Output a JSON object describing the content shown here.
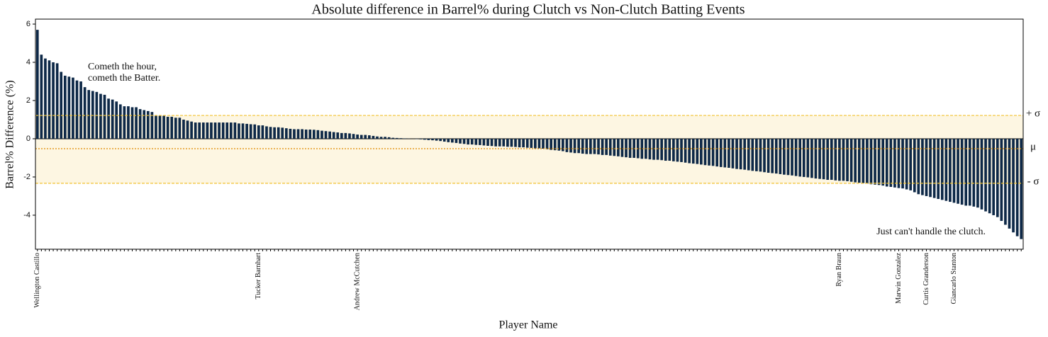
{
  "chart_data": {
    "type": "bar",
    "title": "Absolute difference in Barrel% during Clutch vs Non-Clutch Batting Events",
    "x_label": "Player Name",
    "y_label": "Barrel% Difference (%)",
    "color": "#0d2847",
    "ylim": [
      -5.78,
      6.26
    ],
    "yticks": [
      -4,
      -2,
      0,
      2,
      4,
      6
    ],
    "grid": false,
    "reference_lines": [
      {
        "value": 1.22,
        "label": "+ σ",
        "style": "dashed",
        "color": "#f2c230"
      },
      {
        "value": -0.52,
        "label": "μ",
        "style": "dotted",
        "color": "#e08a00"
      },
      {
        "value": -2.33,
        "label": "- σ",
        "style": "dashed",
        "color": "#f2c230"
      }
    ],
    "band_color": "#fdf6e2",
    "annotations": [
      {
        "text": [
          "Cometh the hour,",
          "cometh the Batter."
        ]
      },
      {
        "text": [
          "Just can't handle the clutch."
        ]
      }
    ],
    "categories": [
      "Wellington Castillo",
      null,
      null,
      null,
      null,
      null,
      null,
      null,
      null,
      null,
      null,
      null,
      null,
      null,
      null,
      null,
      null,
      null,
      null,
      null,
      null,
      null,
      null,
      null,
      null,
      null,
      null,
      null,
      null,
      null,
      null,
      null,
      null,
      null,
      null,
      null,
      null,
      null,
      null,
      null,
      null,
      null,
      null,
      null,
      null,
      null,
      null,
      null,
      null,
      null,
      null,
      null,
      null,
      null,
      null,
      null,
      "Tucker Barnhart",
      null,
      null,
      null,
      null,
      null,
      null,
      null,
      null,
      null,
      null,
      null,
      null,
      null,
      null,
      null,
      null,
      null,
      null,
      null,
      null,
      null,
      null,
      null,
      null,
      "Andrew McCutchen",
      null,
      null,
      null,
      null,
      null,
      null,
      null,
      null,
      null,
      null,
      null,
      null,
      null,
      null,
      null,
      null,
      null,
      null,
      null,
      null,
      null,
      null,
      null,
      null,
      null,
      null,
      null,
      null,
      null,
      null,
      null,
      null,
      null,
      null,
      null,
      null,
      null,
      null,
      null,
      null,
      null,
      null,
      null,
      null,
      null,
      null,
      null,
      null,
      null,
      null,
      null,
      null,
      null,
      null,
      null,
      null,
      null,
      null,
      null,
      null,
      null,
      null,
      null,
      null,
      null,
      null,
      null,
      null,
      null,
      null,
      null,
      null,
      null,
      null,
      null,
      null,
      null,
      null,
      null,
      null,
      null,
      null,
      null,
      null,
      null,
      null,
      null,
      null,
      null,
      null,
      null,
      null,
      null,
      null,
      null,
      null,
      null,
      null,
      null,
      null,
      null,
      null,
      null,
      null,
      null,
      null,
      null,
      null,
      null,
      null,
      null,
      null,
      null,
      null,
      null,
      null,
      null,
      null,
      null,
      null,
      null,
      "Ryan Braun",
      null,
      null,
      null,
      null,
      null,
      null,
      null,
      null,
      null,
      null,
      null,
      null,
      null,
      null,
      "Marwin Gonzalez",
      null,
      null,
      null,
      null,
      null,
      null,
      "Curtis Granderson",
      null,
      null,
      null,
      null,
      null,
      null,
      "Giancarlo Stanton",
      null,
      null,
      null,
      null,
      null,
      null,
      null,
      null,
      null,
      null,
      null,
      null,
      null,
      null,
      null,
      null,
      null
    ],
    "values": [
      5.7,
      4.4,
      4.2,
      4.1,
      4.0,
      3.95,
      3.5,
      3.3,
      3.25,
      3.2,
      3.05,
      3.0,
      2.7,
      2.55,
      2.5,
      2.45,
      2.35,
      2.3,
      2.1,
      2.05,
      1.95,
      1.8,
      1.7,
      1.7,
      1.65,
      1.65,
      1.55,
      1.5,
      1.45,
      1.4,
      1.2,
      1.2,
      1.2,
      1.15,
      1.15,
      1.1,
      1.1,
      1.0,
      0.95,
      0.9,
      0.85,
      0.85,
      0.85,
      0.85,
      0.85,
      0.85,
      0.85,
      0.85,
      0.85,
      0.85,
      0.85,
      0.8,
      0.8,
      0.78,
      0.76,
      0.75,
      0.7,
      0.7,
      0.65,
      0.62,
      0.6,
      0.6,
      0.58,
      0.55,
      0.52,
      0.5,
      0.5,
      0.5,
      0.48,
      0.48,
      0.47,
      0.45,
      0.42,
      0.4,
      0.38,
      0.35,
      0.33,
      0.3,
      0.3,
      0.28,
      0.25,
      0.22,
      0.2,
      0.2,
      0.18,
      0.15,
      0.12,
      0.1,
      0.1,
      0.08,
      0.05,
      0.04,
      0.03,
      0.02,
      0.01,
      0.0,
      -0.02,
      -0.03,
      -0.05,
      -0.07,
      -0.08,
      -0.1,
      -0.12,
      -0.15,
      -0.18,
      -0.2,
      -0.22,
      -0.25,
      -0.27,
      -0.3,
      -0.3,
      -0.32,
      -0.33,
      -0.35,
      -0.37,
      -0.38,
      -0.4,
      -0.4,
      -0.4,
      -0.42,
      -0.42,
      -0.43,
      -0.45,
      -0.45,
      -0.47,
      -0.48,
      -0.5,
      -0.5,
      -0.52,
      -0.55,
      -0.58,
      -0.6,
      -0.62,
      -0.65,
      -0.7,
      -0.72,
      -0.75,
      -0.75,
      -0.78,
      -0.8,
      -0.8,
      -0.8,
      -0.82,
      -0.85,
      -0.85,
      -0.88,
      -0.9,
      -0.92,
      -0.95,
      -0.97,
      -1.0,
      -1.0,
      -1.02,
      -1.05,
      -1.05,
      -1.08,
      -1.1,
      -1.1,
      -1.12,
      -1.15,
      -1.15,
      -1.18,
      -1.2,
      -1.22,
      -1.25,
      -1.28,
      -1.3,
      -1.32,
      -1.35,
      -1.38,
      -1.4,
      -1.42,
      -1.45,
      -1.48,
      -1.5,
      -1.52,
      -1.55,
      -1.58,
      -1.6,
      -1.62,
      -1.65,
      -1.68,
      -1.7,
      -1.72,
      -1.75,
      -1.78,
      -1.8,
      -1.82,
      -1.85,
      -1.88,
      -1.9,
      -1.92,
      -1.95,
      -1.98,
      -2.0,
      -2.02,
      -2.05,
      -2.08,
      -2.1,
      -2.12,
      -2.15,
      -2.15,
      -2.18,
      -2.2,
      -2.2,
      -2.22,
      -2.25,
      -2.28,
      -2.3,
      -2.32,
      -2.35,
      -2.38,
      -2.4,
      -2.42,
      -2.45,
      -2.5,
      -2.52,
      -2.55,
      -2.58,
      -2.6,
      -2.65,
      -2.7,
      -2.8,
      -2.9,
      -2.95,
      -3.0,
      -3.05,
      -3.1,
      -3.15,
      -3.2,
      -3.25,
      -3.3,
      -3.35,
      -3.4,
      -3.45,
      -3.5,
      -3.5,
      -3.55,
      -3.6,
      -3.7,
      -3.8,
      -3.9,
      -4.0,
      -4.1,
      -4.3,
      -4.5,
      -4.7,
      -4.9,
      -5.1,
      -5.25
    ]
  }
}
